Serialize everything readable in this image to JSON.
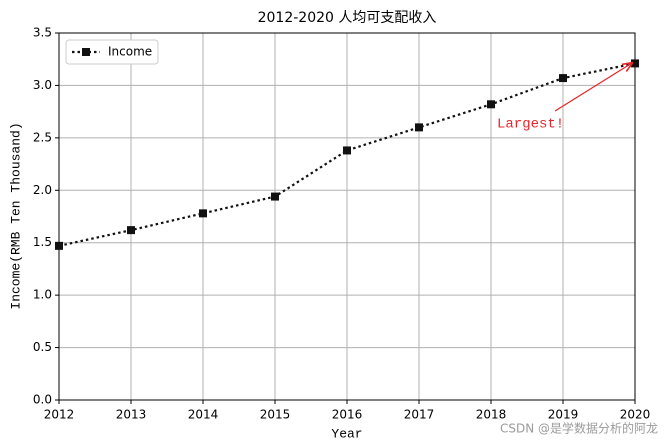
{
  "chart_data": {
    "type": "line",
    "title": "2012-2020 人均可支配收入",
    "x_label": "Year",
    "y_label": "Income(RMB Ten Thousand)",
    "x": [
      2012,
      2013,
      2014,
      2015,
      2016,
      2017,
      2018,
      2019,
      2020
    ],
    "series": [
      {
        "name": "Income",
        "color": "#111111",
        "values": [
          1.47,
          1.62,
          1.78,
          1.94,
          2.38,
          2.6,
          2.82,
          3.07,
          3.21
        ]
      }
    ],
    "xlim": [
      2012,
      2020
    ],
    "xticks": [
      2012,
      2013,
      2014,
      2015,
      2016,
      2017,
      2018,
      2019,
      2020
    ],
    "ylim": [
      0,
      3.5
    ],
    "yticks": [
      {
        "value": 0,
        "label": "0.0"
      },
      0.5,
      {
        "value": 1,
        "label": "1.0"
      },
      1.5,
      {
        "value": 2,
        "label": "2.0"
      },
      2.5,
      {
        "value": 3,
        "label": "3.0"
      },
      3.5
    ],
    "grid": true,
    "legend": "upper left",
    "annotation": {
      "text": "Largest!",
      "color": "#e8262a"
    },
    "watermark": "CSDN @是学数据分析的阿龙"
  }
}
